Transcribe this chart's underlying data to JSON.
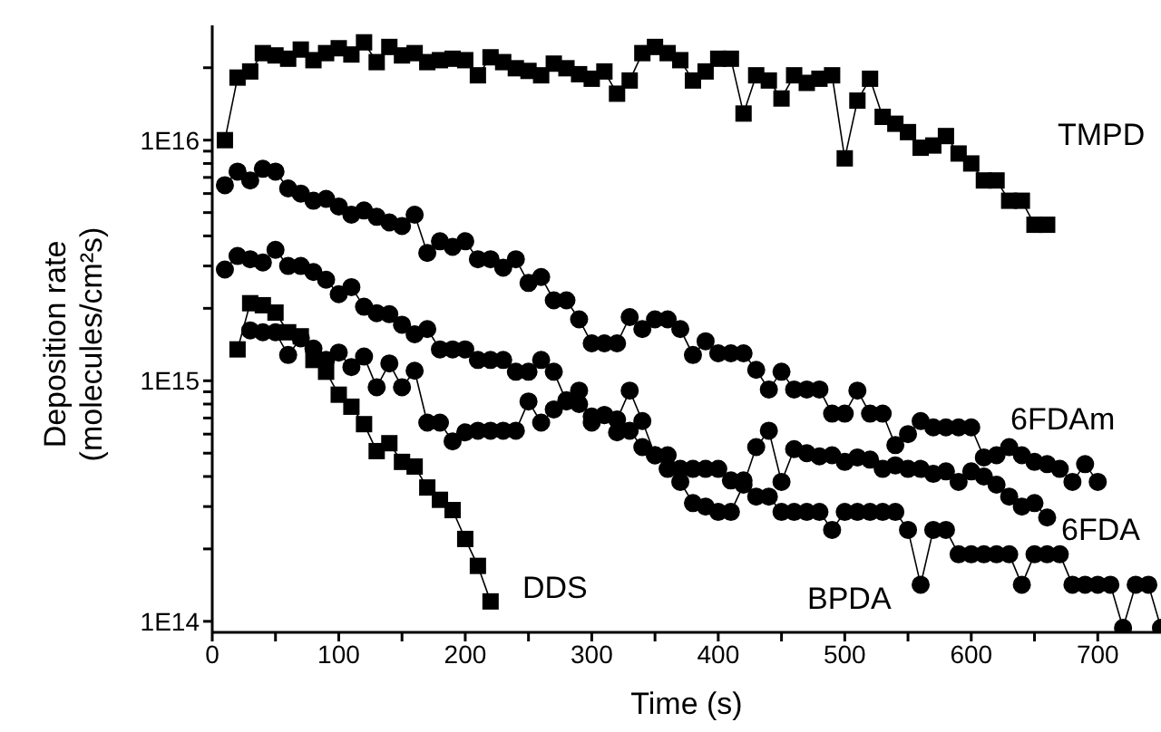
{
  "chart_data": {
    "type": "line",
    "xlabel": "Time (s)",
    "ylabel": "Deposition rate\n(molecules/cm²s)",
    "log": "y",
    "xlim": [
      0,
      750
    ],
    "ylim": [
      90000000000000.0,
      3e+16
    ],
    "xticks": [
      0,
      {
        "value": 50,
        "label": null
      },
      100,
      {
        "value": 150,
        "label": null
      },
      200,
      {
        "value": 250,
        "label": null
      },
      300,
      {
        "value": 350,
        "label": null
      },
      400,
      {
        "value": 450,
        "label": null
      },
      500,
      {
        "value": 550,
        "label": null
      },
      600,
      {
        "value": 650,
        "label": null
      },
      700
    ],
    "yticks": [
      {
        "value": 100000000000000.0,
        "label": "1E14"
      },
      {
        "value": 200000000000000.0,
        "label": null
      },
      {
        "value": 300000000000000.0,
        "label": null
      },
      {
        "value": 400000000000000.0,
        "label": null
      },
      {
        "value": 500000000000000.0,
        "label": null
      },
      {
        "value": 600000000000000.0,
        "label": null
      },
      {
        "value": 700000000000000.0,
        "label": null
      },
      {
        "value": 800000000000000.0,
        "label": null
      },
      {
        "value": 900000000000000.0,
        "label": null
      },
      {
        "value": 1000000000000000.0,
        "label": "1E15"
      },
      {
        "value": 2000000000000000.0,
        "label": null
      },
      {
        "value": 3000000000000000.0,
        "label": null
      },
      {
        "value": 4000000000000000.0,
        "label": null
      },
      {
        "value": 5000000000000000.0,
        "label": null
      },
      {
        "value": 6000000000000000.0,
        "label": null
      },
      {
        "value": 7000000000000000.0,
        "label": null
      },
      {
        "value": 8000000000000000.0,
        "label": null
      },
      {
        "value": 9000000000000000.0,
        "label": null
      },
      {
        "value": 1e+16,
        "label": "1E16"
      },
      {
        "value": 2e+16,
        "label": null
      }
    ],
    "line_style": "solid",
    "series": [
      {
        "name": "TMPD",
        "color": "#000000",
        "marker": "square",
        "x": [
          10,
          20,
          30,
          40,
          50,
          60,
          70,
          80,
          90,
          100,
          110,
          120,
          130,
          140,
          150,
          160,
          170,
          180,
          190,
          200,
          210,
          220,
          230,
          240,
          250,
          260,
          270,
          280,
          290,
          300,
          310,
          320,
          330,
          340,
          350,
          360,
          370,
          380,
          390,
          400,
          410,
          420,
          430,
          440,
          450,
          460,
          470,
          480,
          490,
          500,
          510,
          520,
          530,
          540,
          550,
          560,
          570,
          580,
          590,
          600,
          610,
          620,
          630,
          640,
          650,
          660
        ],
        "values": [
          1e+16,
          1.82e+16,
          1.93e+16,
          2.3e+16,
          2.25e+16,
          2.18e+16,
          2.38e+16,
          2.15e+16,
          2.3e+16,
          2.41e+16,
          2.27e+16,
          2.55e+16,
          2.11e+16,
          2.44e+16,
          2.25e+16,
          2.3e+16,
          2.11e+16,
          2.15e+16,
          2.18e+16,
          2.15e+16,
          1.86e+16,
          2.21e+16,
          2.11e+16,
          1.99e+16,
          1.94e+16,
          1.86e+16,
          2.08e+16,
          1.99e+16,
          1.88e+16,
          1.8e+16,
          1.93e+16,
          1.56e+16,
          1.77e+16,
          2.3e+16,
          2.44e+16,
          2.3e+16,
          2.15e+16,
          1.77e+16,
          1.93e+16,
          2.18e+16,
          2.18e+16,
          1.29e+16,
          1.86e+16,
          1.77e+16,
          1.49e+16,
          1.86e+16,
          1.73e+16,
          1.8e+16,
          1.86e+16,
          8400000000000000.0,
          1.46e+16,
          1.8e+16,
          1.25e+16,
          1.17e+16,
          1.08e+16,
          9300000000000000.0,
          9500000000000000.0,
          1.04e+16,
          8800000000000000.0,
          8000000000000000.0,
          6800000000000000.0,
          6800000000000000.0,
          5600000000000000.0,
          5600000000000000.0,
          4450000000000000.0,
          4450000000000000.0
        ]
      },
      {
        "name": "6FDAm",
        "color": "#000000",
        "marker": "circle",
        "x": [
          10,
          20,
          30,
          40,
          50,
          60,
          70,
          80,
          90,
          100,
          110,
          120,
          130,
          140,
          150,
          160,
          170,
          180,
          190,
          200,
          210,
          220,
          230,
          240,
          250,
          260,
          270,
          280,
          290,
          300,
          310,
          320,
          330,
          340,
          350,
          360,
          370,
          380,
          390,
          400,
          410,
          420,
          430,
          440,
          450,
          460,
          470,
          480,
          490,
          500,
          510,
          520,
          530,
          540,
          550,
          560,
          570,
          580,
          590,
          600,
          610,
          620,
          630,
          640,
          650,
          660,
          670,
          680,
          690,
          700
        ],
        "values": [
          6500000000000000.0,
          7400000000000000.0,
          6800000000000000.0,
          7600000000000000.0,
          7400000000000000.0,
          6300000000000000.0,
          6000000000000000.0,
          5600000000000000.0,
          5700000000000000.0,
          5300000000000000.0,
          4900000000000000.0,
          5100000000000000.0,
          4800000000000000.0,
          4550000000000000.0,
          4400000000000000.0,
          4900000000000000.0,
          3400000000000000.0,
          3800000000000000.0,
          3600000000000000.0,
          3800000000000000.0,
          3200000000000000.0,
          3200000000000000.0,
          2950000000000000.0,
          3200000000000000.0,
          2550000000000000.0,
          2700000000000000.0,
          2160000000000000.0,
          2160000000000000.0,
          1800000000000000.0,
          1430000000000000.0,
          1430000000000000.0,
          1430000000000000.0,
          1840000000000000.0,
          1640000000000000.0,
          1800000000000000.0,
          1800000000000000.0,
          1640000000000000.0,
          1280000000000000.0,
          1460000000000000.0,
          1300000000000000.0,
          1300000000000000.0,
          1300000000000000.0,
          1110000000000000.0,
          920000000000000.0,
          1090000000000000.0,
          920000000000000.0,
          920000000000000.0,
          920000000000000.0,
          730000000000000.0,
          730000000000000.0,
          910000000000000.0,
          730000000000000.0,
          730000000000000.0,
          540000000000000.0,
          600000000000000.0,
          680000000000000.0,
          640000000000000.0,
          640000000000000.0,
          640000000000000.0,
          640000000000000.0,
          480000000000000.0,
          490000000000000.0,
          530000000000000.0,
          490000000000000.0,
          460000000000000.0,
          450000000000000.0,
          430000000000000.0,
          380000000000000.0,
          450000000000000.0,
          380000000000000.0
        ]
      },
      {
        "name": "6FDA",
        "color": "#000000",
        "marker": "circle",
        "x": [
          10,
          20,
          30,
          40,
          50,
          60,
          70,
          80,
          90,
          100,
          110,
          120,
          130,
          140,
          150,
          160,
          170,
          180,
          190,
          200,
          210,
          220,
          230,
          240,
          250,
          260,
          270,
          280,
          290,
          300,
          310,
          320,
          330,
          340,
          350,
          360,
          370,
          380,
          390,
          400,
          410,
          420,
          430,
          440,
          450,
          460,
          470,
          480,
          490,
          500,
          510,
          520,
          530,
          540,
          550,
          560,
          570,
          580,
          590,
          600,
          610,
          620,
          630,
          640,
          650,
          660
        ],
        "values": [
          2900000000000000.0,
          3300000000000000.0,
          3200000000000000.0,
          3100000000000000.0,
          3500000000000000.0,
          3000000000000000.0,
          3000000000000000.0,
          2830000000000000.0,
          2630000000000000.0,
          2290000000000000.0,
          2450000000000000.0,
          2030000000000000.0,
          1910000000000000.0,
          1890000000000000.0,
          1710000000000000.0,
          1560000000000000.0,
          1640000000000000.0,
          1350000000000000.0,
          1350000000000000.0,
          1350000000000000.0,
          1220000000000000.0,
          1220000000000000.0,
          1220000000000000.0,
          1090000000000000.0,
          1090000000000000.0,
          1220000000000000.0,
          1090000000000000.0,
          820000000000000.0,
          800000000000000.0,
          710000000000000.0,
          720000000000000.0,
          690000000000000.0,
          910000000000000.0,
          680000000000000.0,
          490000000000000.0,
          430000000000000.0,
          380000000000000.0,
          310000000000000.0,
          300000000000000.0,
          285000000000000.0,
          285000000000000.0,
          370000000000000.0,
          530000000000000.0,
          620000000000000.0,
          380000000000000.0,
          520000000000000.0,
          500000000000000.0,
          485000000000000.0,
          490000000000000.0,
          460000000000000.0,
          480000000000000.0,
          470000000000000.0,
          430000000000000.0,
          445000000000000.0,
          430000000000000.0,
          430000000000000.0,
          410000000000000.0,
          420000000000000.0,
          380000000000000.0,
          420000000000000.0,
          400000000000000.0,
          370000000000000.0,
          330000000000000.0,
          300000000000000.0,
          310000000000000.0,
          270000000000000.0
        ]
      },
      {
        "name": "BPDA",
        "color": "#000000",
        "marker": "circle",
        "x": [
          30,
          40,
          50,
          60,
          70,
          80,
          90,
          100,
          110,
          120,
          130,
          140,
          150,
          160,
          170,
          180,
          190,
          200,
          210,
          220,
          230,
          240,
          250,
          260,
          270,
          280,
          290,
          300,
          310,
          320,
          330,
          340,
          350,
          360,
          370,
          380,
          390,
          400,
          410,
          420,
          430,
          440,
          450,
          460,
          470,
          480,
          490,
          500,
          510,
          520,
          530,
          540,
          550,
          560,
          570,
          580,
          590,
          600,
          610,
          620,
          630,
          640,
          650,
          660,
          670,
          680,
          690,
          700,
          710,
          720,
          730,
          740,
          750
        ],
        "values": [
          1620000000000000.0,
          1590000000000000.0,
          1590000000000000.0,
          1280000000000000.0,
          1500000000000000.0,
          1360000000000000.0,
          1220000000000000.0,
          1310000000000000.0,
          1140000000000000.0,
          1260000000000000.0,
          940000000000000.0,
          1180000000000000.0,
          940000000000000.0,
          1100000000000000.0,
          670000000000000.0,
          670000000000000.0,
          560000000000000.0,
          610000000000000.0,
          620000000000000.0,
          620000000000000.0,
          620000000000000.0,
          620000000000000.0,
          820000000000000.0,
          670000000000000.0,
          760000000000000.0,
          830000000000000.0,
          910000000000000.0,
          670000000000000.0,
          720000000000000.0,
          610000000000000.0,
          620000000000000.0,
          530000000000000.0,
          490000000000000.0,
          490000000000000.0,
          430000000000000.0,
          430000000000000.0,
          430000000000000.0,
          430000000000000.0,
          385000000000000.0,
          385000000000000.0,
          330000000000000.0,
          330000000000000.0,
          285000000000000.0,
          285000000000000.0,
          285000000000000.0,
          285000000000000.0,
          240000000000000.0,
          285000000000000.0,
          285000000000000.0,
          285000000000000.0,
          285000000000000.0,
          285000000000000.0,
          240000000000000.0,
          142000000000000.0,
          240000000000000.0,
          240000000000000.0,
          190000000000000.0,
          190000000000000.0,
          190000000000000.0,
          190000000000000.0,
          190000000000000.0,
          142000000000000.0,
          190000000000000.0,
          190000000000000.0,
          190000000000000.0,
          142000000000000.0,
          142000000000000.0,
          142000000000000.0,
          142000000000000.0,
          94000000000000.0,
          142000000000000.0,
          142000000000000.0,
          94000000000000.0
        ]
      },
      {
        "name": "DDS",
        "color": "#000000",
        "marker": "square",
        "x": [
          20,
          30,
          40,
          50,
          60,
          70,
          80,
          90,
          100,
          110,
          120,
          130,
          140,
          150,
          160,
          170,
          180,
          190,
          200,
          210,
          220
        ],
        "values": [
          1350000000000000.0,
          2100000000000000.0,
          2060000000000000.0,
          1920000000000000.0,
          1590000000000000.0,
          1530000000000000.0,
          1220000000000000.0,
          1090000000000000.0,
          875000000000000.0,
          780000000000000.0,
          660000000000000.0,
          510000000000000.0,
          550000000000000.0,
          460000000000000.0,
          440000000000000.0,
          360000000000000.0,
          320000000000000.0,
          290000000000000.0,
          220000000000000.0,
          170000000000000.0,
          121000000000000.0
        ]
      }
    ]
  }
}
